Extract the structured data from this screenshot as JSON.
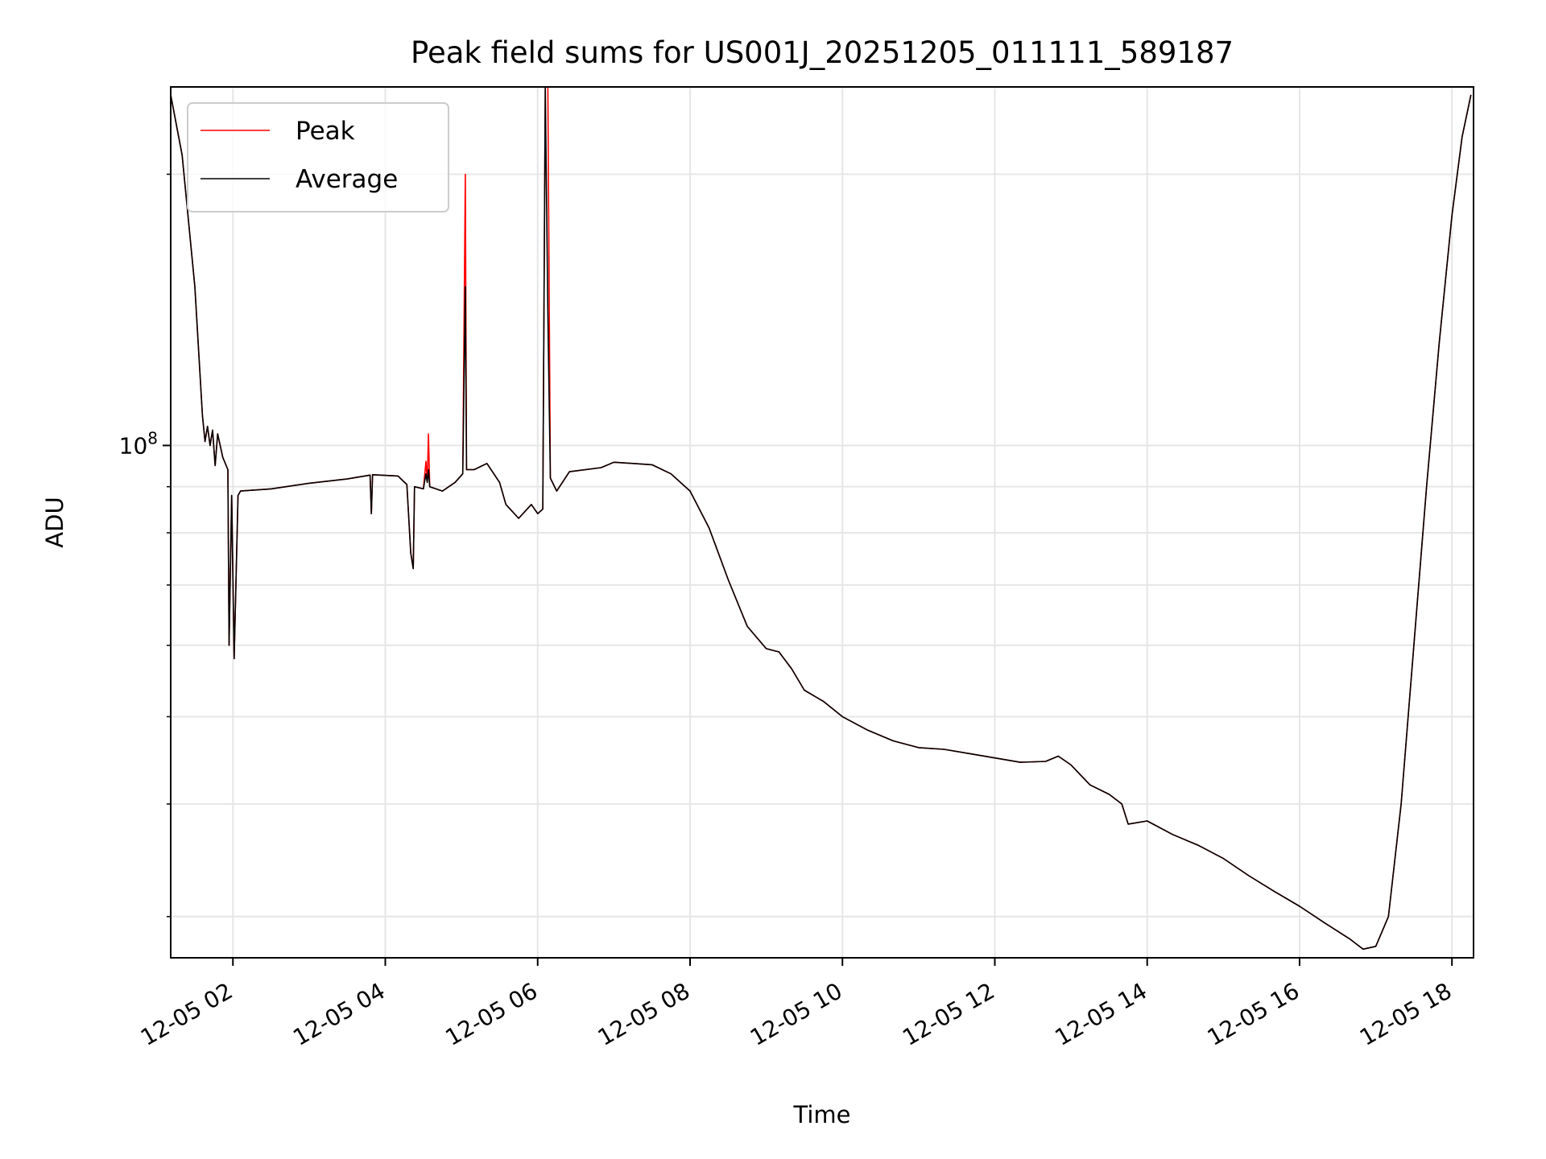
{
  "chart_data": {
    "type": "line",
    "title": "Peak field sums for US001J_20251205_011111_589187",
    "xlabel": "Time",
    "ylabel": "ADU",
    "y_scale": "log",
    "grid": true,
    "legend_position": "top-left",
    "x_tick_labels": [
      "12-05 02",
      "12-05 04",
      "12-05 06",
      "12-05 08",
      "12-05 10",
      "12-05 12",
      "12-05 14",
      "12-05 16",
      "12-05 18"
    ],
    "x_ticks": [
      "2025-12-05 02:00",
      "2025-12-05 04:00",
      "2025-12-05 06:00",
      "2025-12-05 08:00",
      "2025-12-05 10:00",
      "2025-12-05 12:00",
      "2025-12-05 14:00",
      "2025-12-05 16:00",
      "2025-12-05 18:00"
    ],
    "y_tick_labels": [
      {
        "base": "10",
        "exp": "8",
        "value": 100000000
      }
    ],
    "y_minor_ticks": [
      30000000,
      40000000,
      50000000,
      60000000,
      70000000,
      80000000,
      90000000,
      200000000
    ],
    "xlim": [
      "2025-12-05 01:11",
      "2025-12-05 18:17"
    ],
    "ylim": [
      27000000,
      250000000
    ],
    "series": [
      {
        "name": "Peak",
        "color": "#ff0000",
        "points": [
          [
            "2025-12-05 01:11",
            245000000
          ],
          [
            "2025-12-05 01:20",
            210000000
          ],
          [
            "2025-12-05 01:30",
            150000000
          ],
          [
            "2025-12-05 01:36",
            108000000
          ],
          [
            "2025-12-05 01:38",
            101000000
          ],
          [
            "2025-12-05 01:40",
            105000000
          ],
          [
            "2025-12-05 01:42",
            100000000
          ],
          [
            "2025-12-05 01:44",
            104000000
          ],
          [
            "2025-12-05 01:46",
            95000000
          ],
          [
            "2025-12-05 01:48",
            103000000
          ],
          [
            "2025-12-05 01:52",
            97000000
          ],
          [
            "2025-12-05 01:56",
            94000000
          ],
          [
            "2025-12-05 01:57",
            60000000
          ],
          [
            "2025-12-05 01:59",
            88000000
          ],
          [
            "2025-12-05 02:01",
            58000000
          ],
          [
            "2025-12-05 02:04",
            88000000
          ],
          [
            "2025-12-05 02:06",
            89000000
          ],
          [
            "2025-12-05 02:30",
            89500000
          ],
          [
            "2025-12-05 03:00",
            90800000
          ],
          [
            "2025-12-05 03:30",
            91800000
          ],
          [
            "2025-12-05 03:48",
            92700000
          ],
          [
            "2025-12-05 03:49",
            84000000
          ],
          [
            "2025-12-05 03:50",
            92800000
          ],
          [
            "2025-12-05 04:10",
            92500000
          ],
          [
            "2025-12-05 04:17",
            90500000
          ],
          [
            "2025-12-05 04:20",
            76000000
          ],
          [
            "2025-12-05 04:22",
            73000000
          ],
          [
            "2025-12-05 04:23",
            90000000
          ],
          [
            "2025-12-05 04:30",
            89500000
          ],
          [
            "2025-12-05 04:32",
            96000000
          ],
          [
            "2025-12-05 04:33",
            91000000
          ],
          [
            "2025-12-05 04:34",
            103000000
          ],
          [
            "2025-12-05 04:35",
            90000000
          ],
          [
            "2025-12-05 04:45",
            89000000
          ],
          [
            "2025-12-05 04:55",
            91000000
          ],
          [
            "2025-12-05 05:01",
            93000000
          ],
          [
            "2025-12-05 05:03",
            200000000
          ],
          [
            "2025-12-05 05:04",
            94000000
          ],
          [
            "2025-12-05 05:10",
            94000000
          ],
          [
            "2025-12-05 05:20",
            95500000
          ],
          [
            "2025-12-05 05:30",
            91000000
          ],
          [
            "2025-12-05 05:35",
            86000000
          ],
          [
            "2025-12-05 05:45",
            83000000
          ],
          [
            "2025-12-05 05:55",
            86000000
          ],
          [
            "2025-12-05 06:00",
            84000000
          ],
          [
            "2025-12-05 06:04",
            85000000
          ],
          [
            "2025-12-05 06:06",
            250000000
          ],
          [
            "2025-12-05 06:08",
            250000000
          ],
          [
            "2025-12-05 06:10",
            92000000
          ],
          [
            "2025-12-05 06:15",
            89000000
          ],
          [
            "2025-12-05 06:25",
            93500000
          ],
          [
            "2025-12-05 06:50",
            94500000
          ],
          [
            "2025-12-05 07:00",
            95800000
          ],
          [
            "2025-12-05 07:15",
            95500000
          ],
          [
            "2025-12-05 07:30",
            95200000
          ],
          [
            "2025-12-05 07:45",
            93000000
          ],
          [
            "2025-12-05 08:00",
            89000000
          ],
          [
            "2025-12-05 08:15",
            81000000
          ],
          [
            "2025-12-05 08:30",
            71000000
          ],
          [
            "2025-12-05 08:45",
            63000000
          ],
          [
            "2025-12-05 09:00",
            59500000
          ],
          [
            "2025-12-05 09:10",
            59000000
          ],
          [
            "2025-12-05 09:20",
            56500000
          ],
          [
            "2025-12-05 09:30",
            53500000
          ],
          [
            "2025-12-05 09:45",
            52000000
          ],
          [
            "2025-12-05 10:00",
            50000000
          ],
          [
            "2025-12-05 10:20",
            48300000
          ],
          [
            "2025-12-05 10:40",
            47000000
          ],
          [
            "2025-12-05 11:00",
            46200000
          ],
          [
            "2025-12-05 11:20",
            46000000
          ],
          [
            "2025-12-05 11:40",
            45500000
          ],
          [
            "2025-12-05 12:00",
            45000000
          ],
          [
            "2025-12-05 12:20",
            44500000
          ],
          [
            "2025-12-05 12:40",
            44600000
          ],
          [
            "2025-12-05 12:50",
            45200000
          ],
          [
            "2025-12-05 13:00",
            44200000
          ],
          [
            "2025-12-05 13:15",
            42000000
          ],
          [
            "2025-12-05 13:30",
            41000000
          ],
          [
            "2025-12-05 13:40",
            40000000
          ],
          [
            "2025-12-05 13:45",
            38000000
          ],
          [
            "2025-12-05 14:00",
            38300000
          ],
          [
            "2025-12-05 14:20",
            37000000
          ],
          [
            "2025-12-05 14:40",
            36000000
          ],
          [
            "2025-12-05 15:00",
            34800000
          ],
          [
            "2025-12-05 15:20",
            33300000
          ],
          [
            "2025-12-05 15:40",
            32000000
          ],
          [
            "2025-12-05 16:00",
            30800000
          ],
          [
            "2025-12-05 16:20",
            29500000
          ],
          [
            "2025-12-05 16:40",
            28300000
          ],
          [
            "2025-12-05 16:50",
            27600000
          ],
          [
            "2025-12-05 17:00",
            27800000
          ],
          [
            "2025-12-05 17:10",
            30000000
          ],
          [
            "2025-12-05 17:20",
            40000000
          ],
          [
            "2025-12-05 17:30",
            60000000
          ],
          [
            "2025-12-05 17:40",
            90000000
          ],
          [
            "2025-12-05 17:50",
            130000000
          ],
          [
            "2025-12-05 18:00",
            180000000
          ],
          [
            "2025-12-05 18:08",
            220000000
          ],
          [
            "2025-12-05 18:15",
            245000000
          ]
        ]
      },
      {
        "name": "Average",
        "color": "#000000",
        "points": [
          [
            "2025-12-05 01:11",
            245000000
          ],
          [
            "2025-12-05 01:20",
            210000000
          ],
          [
            "2025-12-05 01:30",
            150000000
          ],
          [
            "2025-12-05 01:36",
            108000000
          ],
          [
            "2025-12-05 01:38",
            101000000
          ],
          [
            "2025-12-05 01:40",
            105000000
          ],
          [
            "2025-12-05 01:42",
            100000000
          ],
          [
            "2025-12-05 01:44",
            104000000
          ],
          [
            "2025-12-05 01:46",
            95000000
          ],
          [
            "2025-12-05 01:48",
            103000000
          ],
          [
            "2025-12-05 01:52",
            97000000
          ],
          [
            "2025-12-05 01:56",
            94000000
          ],
          [
            "2025-12-05 01:57",
            60000000
          ],
          [
            "2025-12-05 01:59",
            88000000
          ],
          [
            "2025-12-05 02:01",
            58000000
          ],
          [
            "2025-12-05 02:04",
            88000000
          ],
          [
            "2025-12-05 02:06",
            89000000
          ],
          [
            "2025-12-05 02:30",
            89500000
          ],
          [
            "2025-12-05 03:00",
            90800000
          ],
          [
            "2025-12-05 03:30",
            91800000
          ],
          [
            "2025-12-05 03:48",
            92700000
          ],
          [
            "2025-12-05 03:49",
            84000000
          ],
          [
            "2025-12-05 03:50",
            92800000
          ],
          [
            "2025-12-05 04:10",
            92500000
          ],
          [
            "2025-12-05 04:17",
            90500000
          ],
          [
            "2025-12-05 04:20",
            76000000
          ],
          [
            "2025-12-05 04:22",
            73000000
          ],
          [
            "2025-12-05 04:23",
            90000000
          ],
          [
            "2025-12-05 04:30",
            89500000
          ],
          [
            "2025-12-05 04:32",
            93000000
          ],
          [
            "2025-12-05 04:33",
            91000000
          ],
          [
            "2025-12-05 04:34",
            94000000
          ],
          [
            "2025-12-05 04:35",
            90000000
          ],
          [
            "2025-12-05 04:45",
            89000000
          ],
          [
            "2025-12-05 04:55",
            91000000
          ],
          [
            "2025-12-05 05:01",
            93000000
          ],
          [
            "2025-12-05 05:03",
            150000000
          ],
          [
            "2025-12-05 05:04",
            94000000
          ],
          [
            "2025-12-05 05:10",
            94000000
          ],
          [
            "2025-12-05 05:20",
            95500000
          ],
          [
            "2025-12-05 05:30",
            91000000
          ],
          [
            "2025-12-05 05:35",
            86000000
          ],
          [
            "2025-12-05 05:45",
            83000000
          ],
          [
            "2025-12-05 05:55",
            86000000
          ],
          [
            "2025-12-05 06:00",
            84000000
          ],
          [
            "2025-12-05 06:04",
            85000000
          ],
          [
            "2025-12-05 06:06",
            250000000
          ],
          [
            "2025-12-05 06:08",
            140000000
          ],
          [
            "2025-12-05 06:10",
            92000000
          ],
          [
            "2025-12-05 06:15",
            89000000
          ],
          [
            "2025-12-05 06:25",
            93500000
          ],
          [
            "2025-12-05 06:50",
            94500000
          ],
          [
            "2025-12-05 07:00",
            95800000
          ],
          [
            "2025-12-05 07:15",
            95500000
          ],
          [
            "2025-12-05 07:30",
            95200000
          ],
          [
            "2025-12-05 07:45",
            93000000
          ],
          [
            "2025-12-05 08:00",
            89000000
          ],
          [
            "2025-12-05 08:15",
            81000000
          ],
          [
            "2025-12-05 08:30",
            71000000
          ],
          [
            "2025-12-05 08:45",
            63000000
          ],
          [
            "2025-12-05 09:00",
            59500000
          ],
          [
            "2025-12-05 09:10",
            59000000
          ],
          [
            "2025-12-05 09:20",
            56500000
          ],
          [
            "2025-12-05 09:30",
            53500000
          ],
          [
            "2025-12-05 09:45",
            52000000
          ],
          [
            "2025-12-05 10:00",
            50000000
          ],
          [
            "2025-12-05 10:20",
            48300000
          ],
          [
            "2025-12-05 10:40",
            47000000
          ],
          [
            "2025-12-05 11:00",
            46200000
          ],
          [
            "2025-12-05 11:20",
            46000000
          ],
          [
            "2025-12-05 11:40",
            45500000
          ],
          [
            "2025-12-05 12:00",
            45000000
          ],
          [
            "2025-12-05 12:20",
            44500000
          ],
          [
            "2025-12-05 12:40",
            44600000
          ],
          [
            "2025-12-05 12:50",
            45200000
          ],
          [
            "2025-12-05 13:00",
            44200000
          ],
          [
            "2025-12-05 13:15",
            42000000
          ],
          [
            "2025-12-05 13:30",
            41000000
          ],
          [
            "2025-12-05 13:40",
            40000000
          ],
          [
            "2025-12-05 13:45",
            38000000
          ],
          [
            "2025-12-05 14:00",
            38300000
          ],
          [
            "2025-12-05 14:20",
            37000000
          ],
          [
            "2025-12-05 14:40",
            36000000
          ],
          [
            "2025-12-05 15:00",
            34800000
          ],
          [
            "2025-12-05 15:20",
            33300000
          ],
          [
            "2025-12-05 15:40",
            32000000
          ],
          [
            "2025-12-05 16:00",
            30800000
          ],
          [
            "2025-12-05 16:20",
            29500000
          ],
          [
            "2025-12-05 16:40",
            28300000
          ],
          [
            "2025-12-05 16:50",
            27600000
          ],
          [
            "2025-12-05 17:00",
            27800000
          ],
          [
            "2025-12-05 17:10",
            30000000
          ],
          [
            "2025-12-05 17:20",
            40000000
          ],
          [
            "2025-12-05 17:30",
            60000000
          ],
          [
            "2025-12-05 17:40",
            90000000
          ],
          [
            "2025-12-05 17:50",
            130000000
          ],
          [
            "2025-12-05 18:00",
            180000000
          ],
          [
            "2025-12-05 18:08",
            220000000
          ],
          [
            "2025-12-05 18:15",
            245000000
          ]
        ]
      }
    ]
  }
}
